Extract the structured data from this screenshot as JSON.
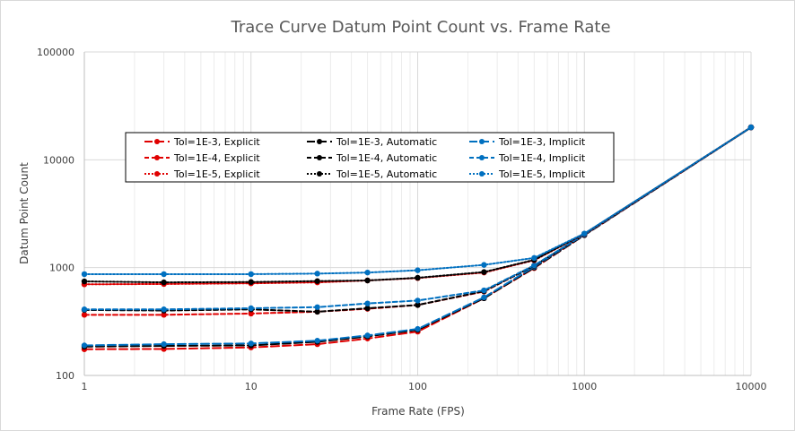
{
  "chart_data": {
    "type": "line",
    "title": "Trace Curve Datum Point Count vs. Frame Rate",
    "xlabel": "Frame Rate (FPS)",
    "ylabel": "Datum Point Count",
    "xscale": "log",
    "yscale": "log",
    "xlim": [
      1,
      10000
    ],
    "ylim": [
      100,
      100000
    ],
    "xticks": [
      1,
      10,
      100,
      1000,
      10000
    ],
    "xtick_labels": [
      "1",
      "10",
      "100",
      "1000",
      "10000"
    ],
    "yticks": [
      100,
      1000,
      10000,
      100000
    ],
    "ytick_labels": [
      "100",
      "1000",
      "10000",
      "100000"
    ],
    "grid": true,
    "legend_position": "upper-left inside plot",
    "x": [
      1,
      3,
      10,
      25,
      50,
      100,
      250,
      500,
      1000,
      10000
    ],
    "series": [
      {
        "name": "Tol=1E-3, Explicit",
        "color": "#e00000",
        "dash": "long",
        "values": [
          175,
          176,
          182,
          195,
          220,
          255,
          520,
          990,
          2000,
          20000
        ]
      },
      {
        "name": "Tol=1E-3, Automatic",
        "color": "#000000",
        "dash": "long",
        "values": [
          185,
          188,
          190,
          205,
          230,
          265,
          520,
          1000,
          2000,
          20000
        ]
      },
      {
        "name": "Tol=1E-3, Implicit",
        "color": "#0070c0",
        "dash": "long",
        "values": [
          190,
          195,
          198,
          210,
          235,
          270,
          530,
          1020,
          2020,
          20000
        ]
      },
      {
        "name": "Tol=1E-4, Explicit",
        "color": "#e00000",
        "dash": "short",
        "values": [
          365,
          365,
          375,
          390,
          415,
          450,
          600,
          1040,
          2020,
          20000
        ]
      },
      {
        "name": "Tol=1E-4, Automatic",
        "color": "#000000",
        "dash": "short",
        "values": [
          405,
          400,
          410,
          390,
          420,
          450,
          605,
          1040,
          2020,
          20000
        ]
      },
      {
        "name": "Tol=1E-4, Implicit",
        "color": "#0070c0",
        "dash": "short",
        "values": [
          410,
          410,
          420,
          430,
          465,
          495,
          615,
          1050,
          2030,
          20000
        ]
      },
      {
        "name": "Tol=1E-5, Explicit",
        "color": "#e00000",
        "dash": "dot",
        "values": [
          700,
          705,
          715,
          730,
          760,
          800,
          900,
          1170,
          2050,
          20000
        ]
      },
      {
        "name": "Tol=1E-5, Automatic",
        "color": "#000000",
        "dash": "dot",
        "values": [
          745,
          730,
          735,
          750,
          760,
          805,
          910,
          1180,
          2060,
          20000
        ]
      },
      {
        "name": "Tol=1E-5, Implicit",
        "color": "#0070c0",
        "dash": "dot",
        "values": [
          870,
          870,
          870,
          880,
          900,
          945,
          1060,
          1230,
          2070,
          20000
        ]
      }
    ]
  }
}
